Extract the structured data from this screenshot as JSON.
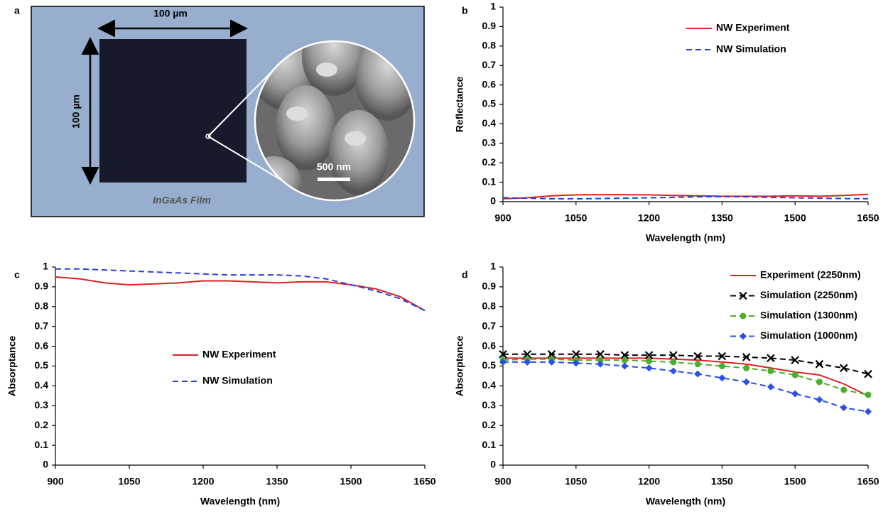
{
  "image_panel": {
    "label": "a",
    "scale_x": "100 µm",
    "scale_y": "100 µm",
    "scale_bar": "500 nm",
    "caption": "InGaAs Film"
  },
  "chart_data": [
    {
      "type": "line",
      "panel": "b",
      "xlabel": "Wavelength (nm)",
      "ylabel": "Reflectance",
      "legend": "upper center",
      "x": [
        900,
        950,
        1000,
        1050,
        1100,
        1150,
        1200,
        1250,
        1300,
        1350,
        1400,
        1450,
        1500,
        1550,
        1600,
        1650
      ],
      "series": [
        {
          "name": "NW Experiment",
          "color": "#e02020",
          "dash": false,
          "values": [
            0.015,
            0.02,
            0.03,
            0.035,
            0.036,
            0.036,
            0.035,
            0.032,
            0.03,
            0.028,
            0.028,
            0.028,
            0.03,
            0.028,
            0.032,
            0.038
          ]
        },
        {
          "name": "NW Simulation",
          "color": "#2a3ee0",
          "dash": true,
          "values": [
            0.02,
            0.018,
            0.015,
            0.015,
            0.016,
            0.018,
            0.02,
            0.022,
            0.025,
            0.026,
            0.025,
            0.022,
            0.02,
            0.018,
            0.016,
            0.015
          ]
        }
      ],
      "xlim": [
        900,
        1650
      ],
      "xticks": [
        900,
        1050,
        1200,
        1350,
        1500,
        1650
      ],
      "ylim": [
        0,
        1
      ],
      "yticks": [
        0,
        0.1,
        0.2,
        0.3,
        0.4,
        0.5,
        0.6,
        0.7,
        0.8,
        0.9,
        1
      ]
    },
    {
      "type": "line",
      "panel": "c",
      "xlabel": "Wavelength (nm)",
      "ylabel": "Absorptance",
      "legend": "center",
      "x": [
        900,
        950,
        1000,
        1050,
        1100,
        1150,
        1200,
        1250,
        1300,
        1350,
        1400,
        1450,
        1500,
        1550,
        1600,
        1650
      ],
      "series": [
        {
          "name": "NW Experiment",
          "color": "#e02020",
          "dash": false,
          "values": [
            0.95,
            0.94,
            0.92,
            0.91,
            0.915,
            0.92,
            0.93,
            0.93,
            0.925,
            0.92,
            0.925,
            0.925,
            0.91,
            0.89,
            0.85,
            0.78
          ]
        },
        {
          "name": "NW Simulation",
          "color": "#2a3ee0",
          "dash": true,
          "values": [
            0.99,
            0.99,
            0.985,
            0.98,
            0.975,
            0.97,
            0.965,
            0.96,
            0.96,
            0.96,
            0.955,
            0.94,
            0.91,
            0.88,
            0.84,
            0.78
          ]
        }
      ],
      "xlim": [
        900,
        1650
      ],
      "xticks": [
        900,
        1050,
        1200,
        1350,
        1500,
        1650
      ],
      "ylim": [
        0,
        1
      ],
      "yticks": [
        0,
        0.1,
        0.2,
        0.3,
        0.4,
        0.5,
        0.6,
        0.7,
        0.8,
        0.9,
        1
      ]
    },
    {
      "type": "line",
      "panel": "d",
      "xlabel": "Wavelength (nm)",
      "ylabel": "Absorptance",
      "legend": "upper right",
      "x": [
        900,
        950,
        1000,
        1050,
        1100,
        1150,
        1200,
        1250,
        1300,
        1350,
        1400,
        1450,
        1500,
        1550,
        1600,
        1650
      ],
      "series": [
        {
          "name": "Experiment (2250nm)",
          "color": "#e02020",
          "dash": false,
          "marker": "none",
          "values": [
            0.54,
            0.54,
            0.54,
            0.54,
            0.54,
            0.54,
            0.54,
            0.535,
            0.53,
            0.52,
            0.51,
            0.49,
            0.47,
            0.455,
            0.41,
            0.35
          ]
        },
        {
          "name": "Simulation (2250nm)",
          "color": "#000000",
          "dash": true,
          "marker": "x",
          "values": [
            0.56,
            0.56,
            0.56,
            0.56,
            0.56,
            0.555,
            0.555,
            0.555,
            0.55,
            0.55,
            0.545,
            0.54,
            0.53,
            0.51,
            0.49,
            0.46
          ]
        },
        {
          "name": "Simulation (1300nm)",
          "color": "#4caf2a",
          "dash": true,
          "marker": "circle",
          "values": [
            0.53,
            0.535,
            0.535,
            0.53,
            0.53,
            0.53,
            0.525,
            0.52,
            0.51,
            0.5,
            0.49,
            0.475,
            0.455,
            0.42,
            0.38,
            0.355
          ]
        },
        {
          "name": "Simulation (1000nm)",
          "color": "#2a50e8",
          "dash": true,
          "marker": "diamond",
          "values": [
            0.52,
            0.52,
            0.52,
            0.515,
            0.51,
            0.5,
            0.49,
            0.475,
            0.46,
            0.44,
            0.42,
            0.395,
            0.36,
            0.33,
            0.29,
            0.27
          ]
        }
      ],
      "xlim": [
        900,
        1650
      ],
      "xticks": [
        900,
        1050,
        1200,
        1350,
        1500,
        1650
      ],
      "ylim": [
        0,
        1
      ],
      "yticks": [
        0,
        0.1,
        0.2,
        0.3,
        0.4,
        0.5,
        0.6,
        0.7,
        0.8,
        0.9,
        1
      ]
    }
  ]
}
